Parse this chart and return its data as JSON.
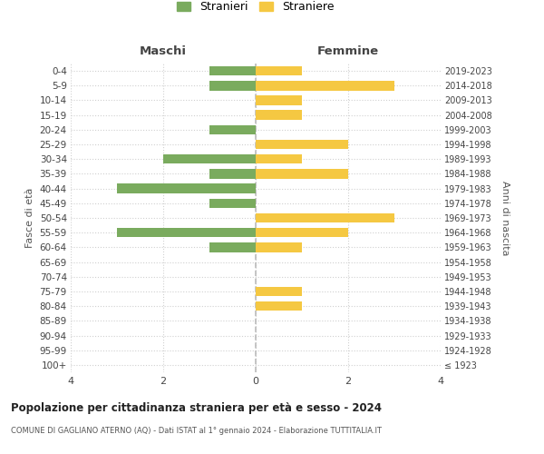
{
  "age_groups": [
    "100+",
    "95-99",
    "90-94",
    "85-89",
    "80-84",
    "75-79",
    "70-74",
    "65-69",
    "60-64",
    "55-59",
    "50-54",
    "45-49",
    "40-44",
    "35-39",
    "30-34",
    "25-29",
    "20-24",
    "15-19",
    "10-14",
    "5-9",
    "0-4"
  ],
  "birth_years": [
    "≤ 1923",
    "1924-1928",
    "1929-1933",
    "1934-1938",
    "1939-1943",
    "1944-1948",
    "1949-1953",
    "1954-1958",
    "1959-1963",
    "1964-1968",
    "1969-1973",
    "1974-1978",
    "1979-1983",
    "1984-1988",
    "1989-1993",
    "1994-1998",
    "1999-2003",
    "2004-2008",
    "2009-2013",
    "2014-2018",
    "2019-2023"
  ],
  "maschi": [
    0,
    0,
    0,
    0,
    0,
    0,
    0,
    0,
    1,
    3,
    0,
    1,
    3,
    1,
    2,
    0,
    1,
    0,
    0,
    1,
    1
  ],
  "femmine": [
    0,
    0,
    0,
    0,
    1,
    1,
    0,
    0,
    1,
    2,
    3,
    0,
    0,
    2,
    1,
    2,
    0,
    1,
    1,
    3,
    1
  ],
  "color_maschi": "#7aab5e",
  "color_femmine": "#f5c842",
  "xlim": 4,
  "title": "Popolazione per cittadinanza straniera per età e sesso - 2024",
  "subtitle": "COMUNE DI GAGLIANO ATERNO (AQ) - Dati ISTAT al 1° gennaio 2024 - Elaborazione TUTTITALIA.IT",
  "label_maschi": "Stranieri",
  "label_femmine": "Straniere",
  "ylabel_left": "Fasce di età",
  "ylabel_right": "Anni di nascita",
  "header_left": "Maschi",
  "header_right": "Femmine",
  "background_color": "#ffffff",
  "grid_color": "#d0d0d0"
}
